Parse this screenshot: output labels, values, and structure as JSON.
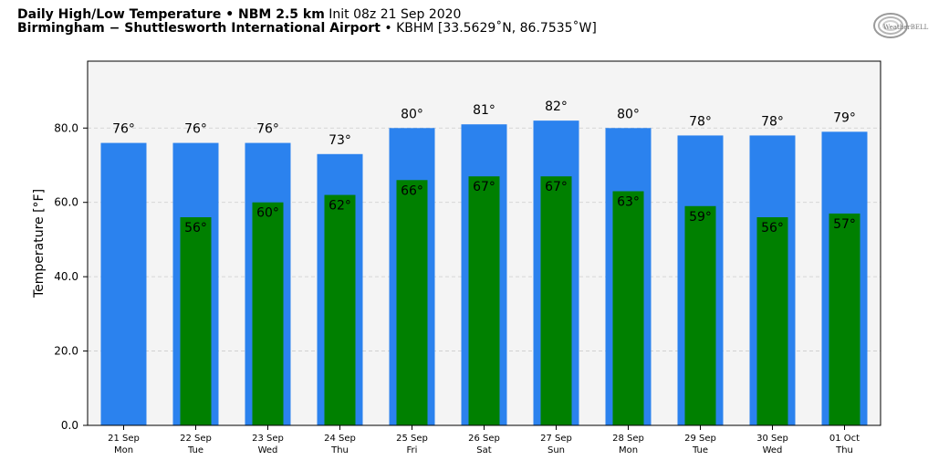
{
  "header": {
    "title": "Daily High/Low Temperature",
    "sep1": " • ",
    "model": "NBM 2.5 km",
    "init": "Init 08z 21 Sep 2020",
    "location": "Birmingham − Shuttlesworth International Airport",
    "sep2": " • ",
    "station": "KBHM [33.5629˚N, 86.7535˚W]"
  },
  "logo": {
    "icon": "weatherbell-logo",
    "text": "WeatherBELL"
  },
  "colors": {
    "high": "#2b82ee",
    "low": "#008000",
    "plot_bg": "#f4f4f4",
    "grid": "#cccccc"
  },
  "chart_data": {
    "type": "bar",
    "categories": [
      "21 Sep|Mon",
      "22 Sep|Tue",
      "23 Sep|Wed",
      "24 Sep|Thu",
      "25 Sep|Fri",
      "26 Sep|Sat",
      "27 Sep|Sun",
      "28 Sep|Mon",
      "29 Sep|Tue",
      "30 Sep|Wed",
      "01 Oct|Thu"
    ],
    "series": [
      {
        "key": "high",
        "values": [
          76,
          76,
          76,
          73,
          80,
          81,
          82,
          80,
          78,
          78,
          79
        ]
      },
      {
        "key": "low",
        "values": [
          null,
          56,
          60,
          62,
          66,
          67,
          67,
          63,
          59,
          56,
          57
        ]
      }
    ],
    "value_suffix": "°",
    "ylabel": "Temperature [°F]",
    "ylim": [
      0,
      98
    ],
    "yticks": [
      "0.0",
      "20.0",
      "40.0",
      "60.0",
      "80.0"
    ],
    "ytick_values": [
      0,
      20,
      40,
      60,
      80
    ],
    "grid": true
  }
}
